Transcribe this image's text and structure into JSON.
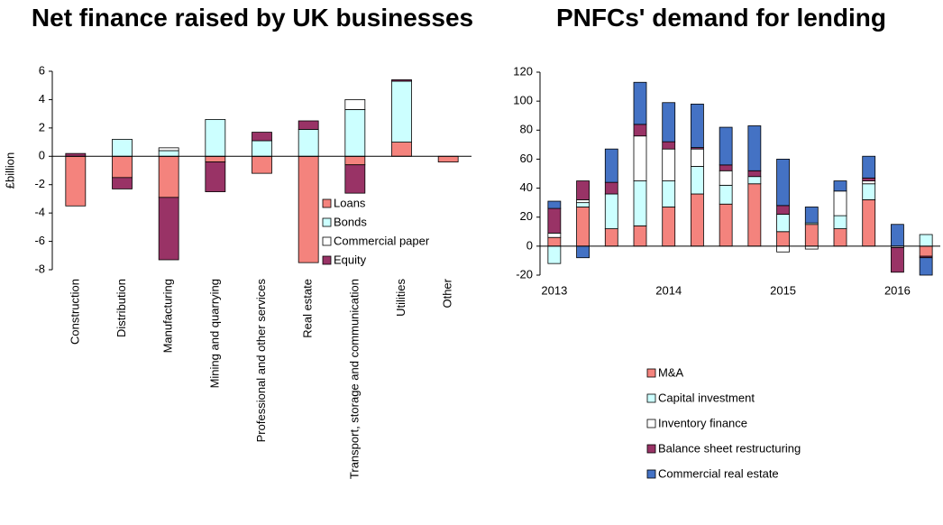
{
  "chart_data": [
    {
      "type": "bar",
      "stacked": true,
      "title": "Net finance raised by UK businesses",
      "ylabel": "£billion",
      "categories": [
        "Construction",
        "Distribution",
        "Manufacturing",
        "Mining and quarrying",
        "Professional and other services",
        "Real estate",
        "Transport, storage and communication",
        "Utilities",
        "Other"
      ],
      "series": [
        {
          "name": "Loans",
          "color": "#f4837d",
          "values": [
            -3.5,
            -1.5,
            -2.9,
            -0.4,
            -1.2,
            -7.5,
            -0.6,
            1.0,
            -0.4
          ]
        },
        {
          "name": "Bonds",
          "color": "#ccffff",
          "values": [
            0,
            1.2,
            0.4,
            2.6,
            1.1,
            1.9,
            3.3,
            4.3,
            0
          ]
        },
        {
          "name": "Commercial paper",
          "color": "#ffffff",
          "values": [
            0,
            0,
            0.2,
            0,
            0,
            0,
            0.7,
            0,
            0
          ]
        },
        {
          "name": "Equity",
          "color": "#993366",
          "values": [
            0.2,
            -0.8,
            -4.4,
            -2.1,
            0.6,
            0.6,
            -2.0,
            0.1,
            0
          ]
        }
      ],
      "ylim": [
        -8,
        6
      ],
      "yticks": [
        -8,
        -6,
        -4,
        -2,
        0,
        2,
        4,
        6
      ],
      "legend": "lower right"
    },
    {
      "type": "bar",
      "stacked": true,
      "title": "PNFCs' demand for lending",
      "categories": [
        "2013",
        null,
        null,
        null,
        "2014",
        null,
        null,
        null,
        "2015",
        null,
        null,
        null,
        "2016",
        null
      ],
      "series": [
        {
          "name": "M&A",
          "color": "#f4837d",
          "values": [
            6,
            27,
            12,
            14,
            27,
            36,
            29,
            43,
            10,
            15,
            12,
            32,
            0,
            -7
          ]
        },
        {
          "name": "Capital investment",
          "color": "#ccffff",
          "values": [
            -12,
            3,
            24,
            31,
            18,
            19,
            13,
            5,
            12,
            1,
            9,
            11,
            0,
            8
          ]
        },
        {
          "name": "Inventory finance",
          "color": "#ffffff",
          "values": [
            3,
            2,
            0,
            31,
            22,
            12,
            10,
            0,
            -4,
            -2,
            17,
            2,
            -1,
            0
          ]
        },
        {
          "name": "Balance sheet restructuring",
          "color": "#993366",
          "values": [
            17,
            13,
            8,
            8,
            5,
            1,
            4,
            4,
            6,
            0,
            0,
            2,
            -17,
            -1
          ]
        },
        {
          "name": "Commercial real estate",
          "color": "#4472c4",
          "values": [
            5,
            -8,
            23,
            29,
            27,
            30,
            26,
            31,
            32,
            11,
            7,
            15,
            15,
            -12
          ]
        }
      ],
      "ylim": [
        -20,
        120
      ],
      "yticks": [
        -20,
        0,
        20,
        40,
        60,
        80,
        100,
        120
      ],
      "legend": "below"
    }
  ]
}
